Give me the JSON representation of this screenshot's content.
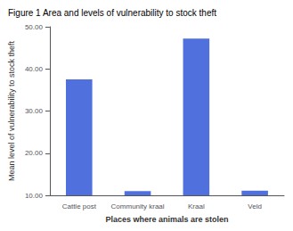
{
  "chart_data": {
    "type": "bar",
    "title": "Figure 1 Area and levels of vulnerability to stock theft",
    "xlabel": "Places where animals are stolen",
    "ylabel": "Mean level of vulnerability to stock theft",
    "categories": [
      "Cattle post",
      "Community kraal",
      "Kraal",
      "Veld"
    ],
    "values": [
      37.5,
      11.0,
      47.2,
      11.1
    ],
    "ylim": [
      10.0,
      50.0
    ],
    "yticks": [
      {
        "value": 10.0,
        "label": "10.00"
      },
      {
        "value": 20.0,
        "label": "20.00"
      },
      {
        "value": 30.0,
        "label": "30.00"
      },
      {
        "value": 40.0,
        "label": "40.00"
      },
      {
        "value": 50.0,
        "label": "50.00"
      }
    ],
    "grid": false
  }
}
